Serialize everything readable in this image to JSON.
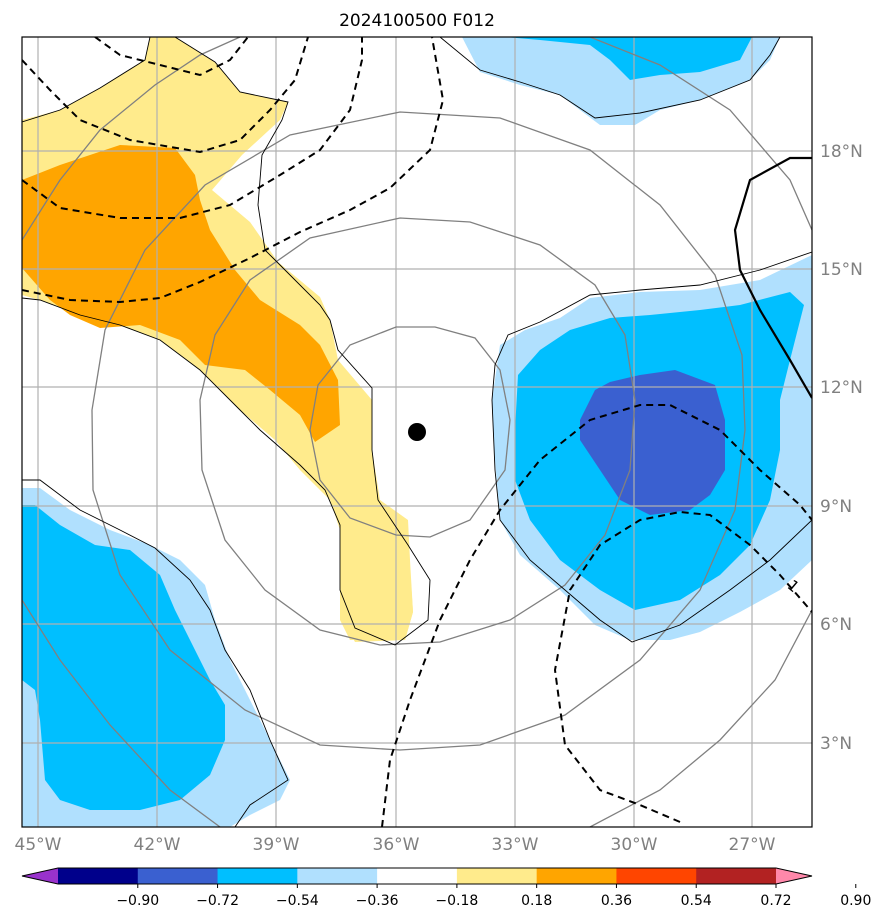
{
  "title": "2024100500 F012",
  "colors": {
    "pos_0_18_0_36": "#ffeb8c",
    "pos_0_36_0_54": "#ffa500",
    "neg_0_18_0_36": "#b0e0fe",
    "neg_0_36_0_54": "#00bfff",
    "neg_0_54_0_72": "#3a60d0",
    "grid": "#b0b0b0",
    "range_rings": "#808080",
    "coast": "#000000",
    "contour": "#000000",
    "center_marker": "#000000"
  },
  "map": {
    "lon_range": [
      -46,
      -25
    ],
    "lat_range": [
      1,
      21
    ],
    "x_ticks": [
      "45°W",
      "42°W",
      "39°W",
      "36°W",
      "33°W",
      "30°W",
      "27°W"
    ],
    "y_ticks": [
      "18°N",
      "15°N",
      "12°N",
      "9°N",
      "6°N",
      "3°N"
    ],
    "center_lon": -35.6,
    "center_lat": 10.9,
    "contour_label": "1"
  },
  "colorbar": {
    "colors": [
      "#9932cc",
      "#00008b",
      "#3a60d0",
      "#00bfff",
      "#b0e0fe",
      "#ffffff",
      "#ffeb8c",
      "#ffa500",
      "#ff4500",
      "#b22222",
      "#ff88aa"
    ],
    "labels": [
      "−0.90",
      "−0.72",
      "−0.54",
      "−0.36",
      "−0.18",
      "0.18",
      "0.36",
      "0.54",
      "0.72",
      "0.90"
    ],
    "extend": "both",
    "placement": "bottom"
  }
}
